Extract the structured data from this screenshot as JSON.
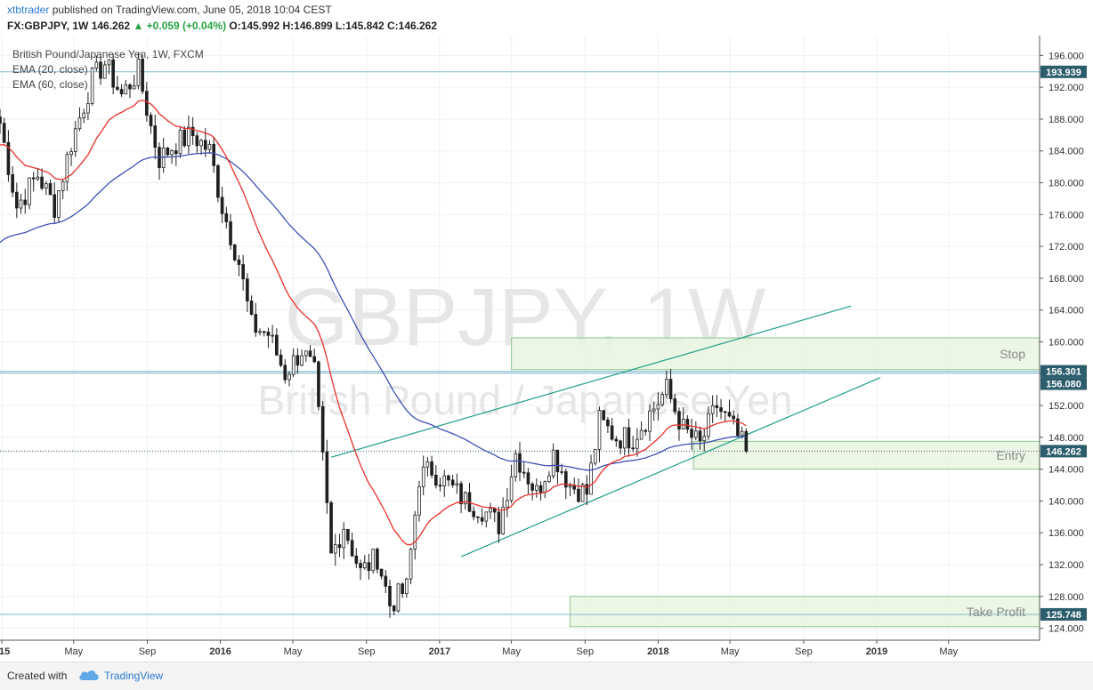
{
  "header": {
    "author": "xtbtrader",
    "published_text": "published on TradingView.com, June 05, 2018 10:04 CEST",
    "symbol": "FX:GBPJPY, 1W",
    "last": "146.262",
    "change_arrow": "▲",
    "change": "+0.059 (+0.04%)",
    "o_label": "O:",
    "o": "145.992",
    "h_label": "H:",
    "h": "146.899",
    "l_label": "L:",
    "l": "145.842",
    "c_label": "C:",
    "c": "146.262"
  },
  "legend": {
    "title": "British Pound/Japanese Yen, 1W, FXCM",
    "ema20": "EMA (20, close)",
    "ema60": "EMA (60, close)"
  },
  "watermark": {
    "line1": "GBPJPY, 1W",
    "line2": "British Pound / Japanese Yen"
  },
  "footer": {
    "created_with": "Created with",
    "brand": "TradingView"
  },
  "chart_data": {
    "type": "candlestick",
    "title": "British Pound/Japanese Yen, 1W, FXCM",
    "ylim": [
      122.5,
      198.5
    ],
    "y_ticks": [
      124,
      128,
      132,
      136,
      140,
      144,
      148,
      152,
      156,
      160,
      164,
      168,
      172,
      176,
      180,
      184,
      188,
      192,
      196
    ],
    "x_range": [
      "2014-12-29",
      "2019-09-30"
    ],
    "x_ticks": [
      {
        "label": "015",
        "date": "2015-01-01"
      },
      {
        "label": "May",
        "date": "2015-05-01"
      },
      {
        "label": "Sep",
        "date": "2015-09-01"
      },
      {
        "label": "2016",
        "date": "2016-01-01"
      },
      {
        "label": "May",
        "date": "2016-05-01"
      },
      {
        "label": "Sep",
        "date": "2016-09-01"
      },
      {
        "label": "2017",
        "date": "2017-01-01"
      },
      {
        "label": "May",
        "date": "2017-05-01"
      },
      {
        "label": "Sep",
        "date": "2017-09-01"
      },
      {
        "label": "2018",
        "date": "2018-01-01"
      },
      {
        "label": "May",
        "date": "2018-05-01"
      },
      {
        "label": "Sep",
        "date": "2018-09-01"
      },
      {
        "label": "2019",
        "date": "2019-01-01"
      },
      {
        "label": "May",
        "date": "2019-05-01"
      }
    ],
    "price_anchors": [
      [
        "2014-12-29",
        187.5
      ],
      [
        "2015-01-26",
        177.0
      ],
      [
        "2015-03-02",
        181.0
      ],
      [
        "2015-03-30",
        177.0
      ],
      [
        "2015-04-27",
        185.0
      ],
      [
        "2015-06-01",
        193.0
      ],
      [
        "2015-06-22",
        195.0
      ],
      [
        "2015-07-20",
        191.0
      ],
      [
        "2015-08-17",
        194.0
      ],
      [
        "2015-09-07",
        187.0
      ],
      [
        "2015-09-21",
        183.0
      ],
      [
        "2015-10-19",
        185.0
      ],
      [
        "2015-11-16",
        186.0
      ],
      [
        "2015-12-14",
        184.0
      ],
      [
        "2016-01-04",
        177.0
      ],
      [
        "2016-02-01",
        170.0
      ],
      [
        "2016-02-22",
        162.0
      ],
      [
        "2016-03-21",
        161.0
      ],
      [
        "2016-04-18",
        156.0
      ],
      [
        "2016-05-16",
        159.0
      ],
      [
        "2016-06-06",
        156.0
      ],
      [
        "2016-06-20",
        145.0
      ],
      [
        "2016-07-04",
        133.0
      ],
      [
        "2016-07-25",
        137.0
      ],
      [
        "2016-08-22",
        131.0
      ],
      [
        "2016-09-19",
        133.0
      ],
      [
        "2016-10-10",
        127.0
      ],
      [
        "2016-11-07",
        129.0
      ],
      [
        "2016-11-28",
        143.0
      ],
      [
        "2016-12-19",
        144.0
      ],
      [
        "2017-01-16",
        142.0
      ],
      [
        "2017-02-13",
        140.0
      ],
      [
        "2017-03-13",
        139.0
      ],
      [
        "2017-04-10",
        137.0
      ],
      [
        "2017-05-08",
        146.0
      ],
      [
        "2017-06-12",
        141.0
      ],
      [
        "2017-07-10",
        146.0
      ],
      [
        "2017-08-07",
        142.0
      ],
      [
        "2017-09-04",
        141.0
      ],
      [
        "2017-09-25",
        150.0
      ],
      [
        "2017-10-23",
        148.0
      ],
      [
        "2017-11-20",
        148.0
      ],
      [
        "2017-12-18",
        151.0
      ],
      [
        "2018-01-15",
        154.0
      ],
      [
        "2018-02-12",
        149.0
      ],
      [
        "2018-03-12",
        147.0
      ],
      [
        "2018-04-09",
        152.0
      ],
      [
        "2018-05-07",
        149.0
      ],
      [
        "2018-05-28",
        146.26
      ]
    ],
    "series": [
      {
        "name": "EMA (20, close)",
        "color": "#e8302a"
      },
      {
        "name": "EMA (60, close)",
        "color": "#3f51b5"
      }
    ],
    "horizontal_levels": [
      {
        "value": 193.939,
        "label": "193.939"
      },
      {
        "value": 156.301,
        "label": "156.301"
      },
      {
        "value": 156.08,
        "label": "156.080"
      },
      {
        "value": 146.262,
        "label": "146.262",
        "dotted": true
      },
      {
        "value": 125.748,
        "label": "125.748"
      }
    ],
    "zones": [
      {
        "label": "Stop",
        "from": "2017-05-01",
        "to": "2019-09-30",
        "low": 156.5,
        "high": 160.5
      },
      {
        "label": "Entry",
        "from": "2018-03-01",
        "to": "2019-09-30",
        "low": 144.0,
        "high": 147.5
      },
      {
        "label": "Take Profit",
        "from": "2017-08-07",
        "to": "2019-09-30",
        "low": 124.2,
        "high": 128.0
      }
    ],
    "trendlines": [
      {
        "from": [
          "2016-07-04",
          145.5
        ],
        "to": [
          "2018-11-19",
          164.5
        ]
      },
      {
        "from": [
          "2017-02-06",
          133.0
        ],
        "to": [
          "2019-01-07",
          155.5
        ]
      }
    ],
    "colors": {
      "up": "#26a69a",
      "down": "#ef5350",
      "candle_body": "#1f1f1f",
      "candle_up_fill": "#ffffff",
      "ema20": "#e8302a",
      "ema60": "#3f51b5",
      "trend": "#1f9e89",
      "level": "#7fbad1",
      "zone_fill": "#e8f5e1",
      "zone_stroke": "#8fc98f",
      "axis_label_bg": "#2b5d6d"
    }
  }
}
